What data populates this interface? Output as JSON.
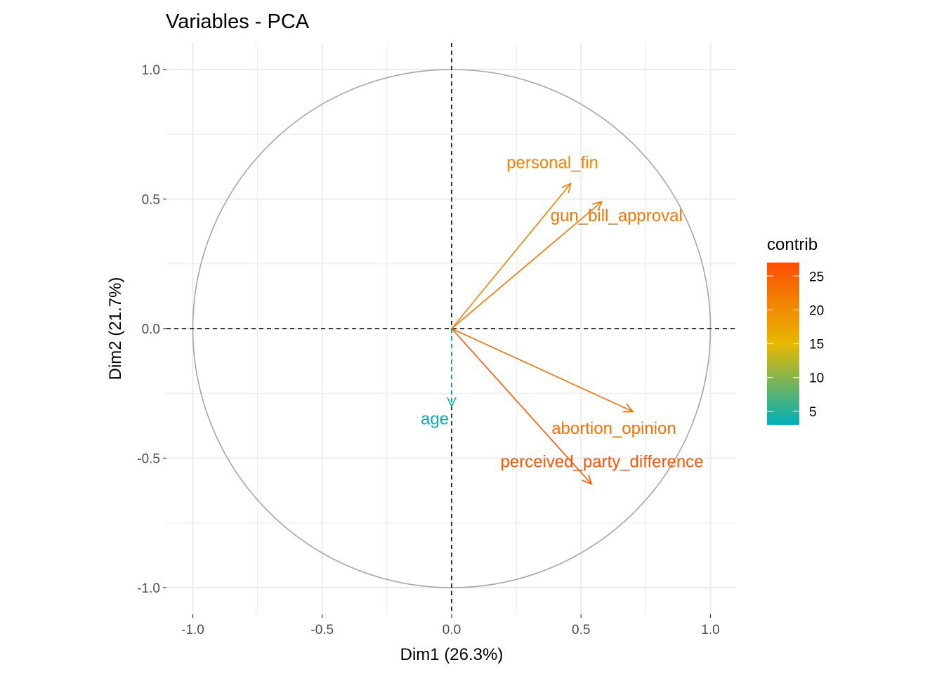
{
  "chart_data": {
    "type": "scatter",
    "subtype": "pca-variable-correlation-circle",
    "title": "Variables - PCA",
    "xlabel": "Dim1 (26.3%)",
    "ylabel": "Dim2 (21.7%)",
    "xlim": [
      -1.1,
      1.1
    ],
    "ylim": [
      -1.1,
      1.1
    ],
    "x_ticks": [
      -1.0,
      -0.5,
      0.0,
      0.5,
      1.0
    ],
    "y_ticks": [
      -1.0,
      -0.5,
      0.0,
      0.5,
      1.0
    ],
    "x_tick_labels": [
      "-1.0",
      "-0.5",
      "0.0",
      "0.5",
      "1.0"
    ],
    "y_tick_labels": [
      "-1.0",
      "-0.5",
      "0.0",
      "0.5",
      "1.0"
    ],
    "grid": true,
    "unit_circle": true,
    "reference_lines": {
      "x": 0,
      "y": 0,
      "style": "dashed"
    },
    "variables": [
      {
        "name": "personal_fin",
        "x": 0.46,
        "y": 0.56,
        "contrib": 21.0
      },
      {
        "name": "gun_bill_approval",
        "x": 0.58,
        "y": 0.49,
        "contrib": 22.5
      },
      {
        "name": "abortion_opinion",
        "x": 0.7,
        "y": -0.32,
        "contrib": 23.0
      },
      {
        "name": "perceived_party_difference",
        "x": 0.54,
        "y": -0.6,
        "contrib": 26.0
      },
      {
        "name": "age",
        "x": 0.0,
        "y": -0.3,
        "contrib": 3.5
      }
    ],
    "legend": {
      "title": "contrib",
      "position": "right",
      "min": 3,
      "max": 27,
      "ticks": [
        5,
        10,
        15,
        20,
        25
      ],
      "tick_labels": [
        "5",
        "10",
        "15",
        "20",
        "25"
      ],
      "gradient_colors": [
        "#00AFBB",
        "#E7B800",
        "#FC4E07"
      ]
    },
    "colors": {
      "circle": "#a6a6a6",
      "grid": "#ebebeb",
      "reference_line": "#000000",
      "tick_label": "#4d4d4d"
    }
  }
}
